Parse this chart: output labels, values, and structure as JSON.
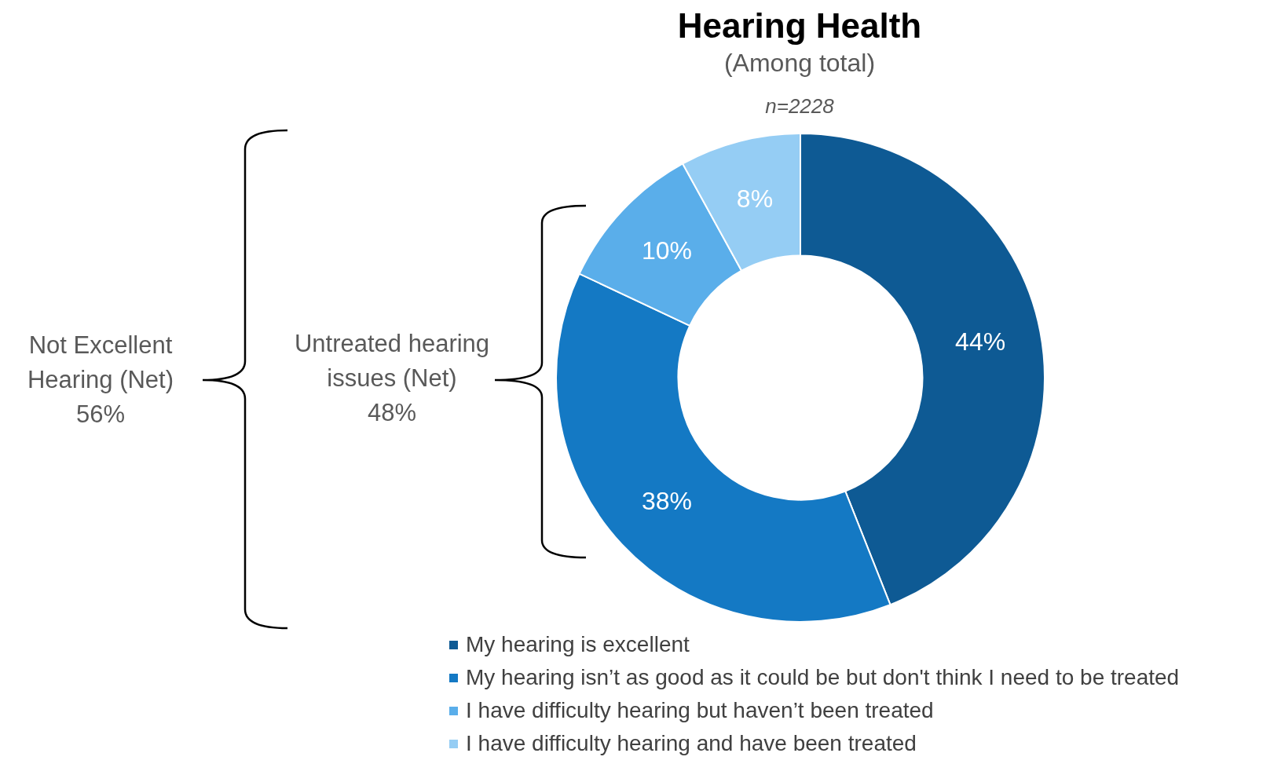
{
  "chart_data": {
    "type": "donut",
    "title": "Hearing Health",
    "subtitle": "(Among total)",
    "categories": [
      "My hearing is excellent",
      "My hearing isn’t as good as it could be but don't think I need to be treated",
      "I have difficulty hearing but haven’t been treated",
      "I have difficulty hearing and have been treated"
    ],
    "values": [
      44,
      38,
      10,
      8
    ],
    "colors": [
      "#0e5a94",
      "#1479c4",
      "#5aaeea",
      "#95cdf4"
    ],
    "value_labels": [
      "44%",
      "38%",
      "10%",
      "8%"
    ],
    "legend": "bottom",
    "annotations": [
      "n=2228",
      "Not Excellent\nHearing (Net)\n56%",
      "Untreated hearing\nissues (Net)\n48%"
    ]
  }
}
